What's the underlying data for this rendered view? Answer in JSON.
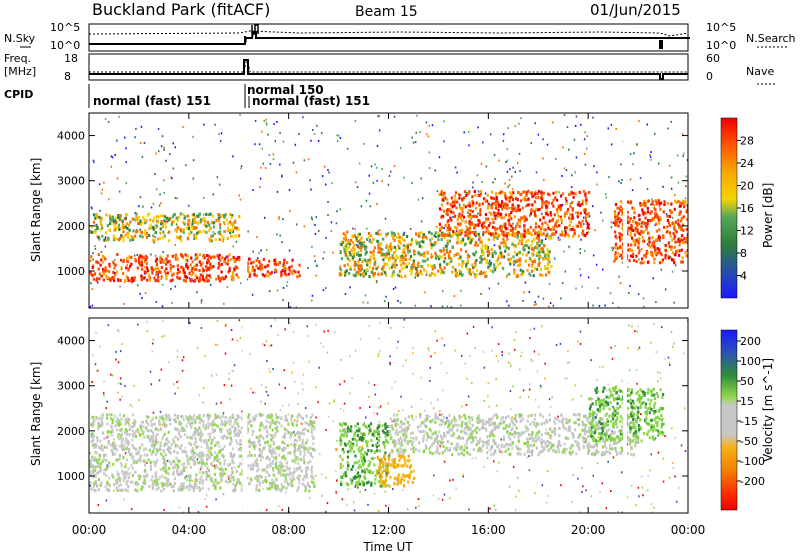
{
  "header": {
    "station": "Buckland Park (fitACF)",
    "beam": "Beam 15",
    "date": "01/Jun/2015"
  },
  "strip_panels": {
    "nsky": {
      "left_label": "N.Sky",
      "left_ticks": [
        "10^5",
        "10^0"
      ],
      "right_label": "N.Search",
      "right_ticks": [
        "10^5",
        "10^0"
      ]
    },
    "freq": {
      "left_label_1": "Freq.",
      "left_label_2": "[MHz]",
      "left_ticks": [
        "18",
        "8"
      ],
      "right_label": "Nave",
      "right_ticks": [
        "60",
        "0"
      ]
    },
    "cpid": {
      "label": "CPID",
      "segments": [
        {
          "start": "00:00",
          "label": "normal (fast) 151"
        },
        {
          "start": "06:10",
          "label": "normal 150"
        },
        {
          "start": "06:20",
          "label": "normal (fast) 151"
        }
      ]
    }
  },
  "x_axis": {
    "title": "Time UT",
    "ticks": [
      "00:00",
      "04:00",
      "08:00",
      "12:00",
      "16:00",
      "20:00",
      "00:00"
    ]
  },
  "chart_data": [
    {
      "type": "heatmap",
      "xlabel": "Time UT",
      "ylabel": "Slant Range [km]",
      "xlim": [
        "00:00",
        "24:00"
      ],
      "ylim": [
        180,
        4500
      ],
      "y_ticks": [
        1000,
        2000,
        3000,
        4000
      ],
      "colorbar": {
        "label": "Power [dB]",
        "ticks": [
          4,
          8,
          12,
          16,
          20,
          24,
          28
        ],
        "levels": [
          "#1a1aff",
          "#2650a8",
          "#2e7d3a",
          "#57a85a",
          "#f4d300",
          "#f7a800",
          "#ff6a00",
          "#ff2a00",
          "#ee0000"
        ]
      },
      "bands": [
        {
          "t": [
            0,
            6
          ],
          "range_km": [
            800,
            1400
          ],
          "level": "strong"
        },
        {
          "t": [
            0,
            6
          ],
          "range_km": [
            1700,
            2300
          ],
          "level": "medium"
        },
        {
          "t": [
            6.3,
            8.4
          ],
          "range_km": [
            900,
            1300
          ],
          "level": "strong"
        },
        {
          "t": [
            10,
            18.5
          ],
          "range_km": [
            900,
            1900
          ],
          "level": "medium"
        },
        {
          "t": [
            14,
            20
          ],
          "range_km": [
            1800,
            2800
          ],
          "level": "strong"
        },
        {
          "t": [
            21,
            24
          ],
          "range_km": [
            1200,
            2600
          ],
          "level": "strong"
        }
      ]
    },
    {
      "type": "heatmap",
      "xlabel": "Time UT",
      "ylabel": "Slant Range [km]",
      "xlim": [
        "00:00",
        "24:00"
      ],
      "ylim": [
        180,
        4500
      ],
      "y_ticks": [
        1000,
        2000,
        3000,
        4000
      ],
      "colorbar": {
        "label": "Velocity [m s^-1]",
        "ticks": [
          "200",
          "100",
          "50",
          "15",
          "-15",
          "-50",
          "-100",
          "-200"
        ],
        "levels": [
          "#1a1aff",
          "#2a50b8",
          "#2e8b3a",
          "#8fd84a",
          "#c8c8c8",
          "#c8c8c8",
          "#f8b018",
          "#f28000",
          "#ff3000",
          "#ee0000"
        ]
      },
      "bands": [
        {
          "t": [
            0,
            9
          ],
          "range_km": [
            700,
            2400
          ],
          "level": "near-zero"
        },
        {
          "t": [
            10,
            12
          ],
          "range_km": [
            800,
            2200
          ],
          "level": "positive"
        },
        {
          "t": [
            11.5,
            13
          ],
          "range_km": [
            800,
            1500
          ],
          "level": "negative"
        },
        {
          "t": [
            12,
            22
          ],
          "range_km": [
            1500,
            2400
          ],
          "level": "near-zero"
        },
        {
          "t": [
            20,
            23
          ],
          "range_km": [
            1800,
            3000
          ],
          "level": "positive"
        }
      ]
    }
  ]
}
